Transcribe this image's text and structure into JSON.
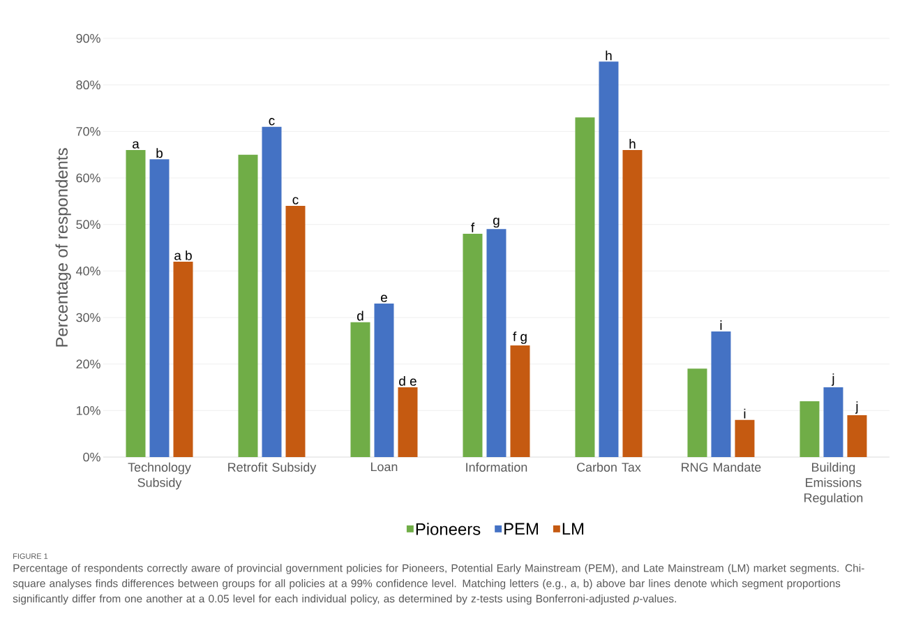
{
  "chart_data": {
    "type": "bar",
    "ylabel": "Percentage of respondents",
    "categories": [
      "Technology Subsidy",
      "Retrofit Subsidy",
      "Loan",
      "Information",
      "Carbon Tax",
      "RNG Mandate",
      "Building Emissions Regulation"
    ],
    "series": [
      {
        "name": "Pioneers",
        "color": "#70ad47",
        "values": [
          66,
          65,
          29,
          48,
          73,
          19,
          12
        ],
        "value_labels": [
          "a",
          null,
          "d",
          "f",
          null,
          null,
          null
        ]
      },
      {
        "name": "PEM",
        "color": "#4472c4",
        "values": [
          64,
          71,
          33,
          49,
          85,
          27,
          15
        ],
        "value_labels": [
          "b",
          "c",
          "e",
          "g",
          "h",
          "i",
          "j"
        ]
      },
      {
        "name": "LM",
        "color": "#c55a11",
        "values": [
          42,
          54,
          15,
          24,
          66,
          8,
          9
        ],
        "value_labels": [
          "a b",
          "c",
          "d e",
          "f g",
          "h",
          "i",
          "j"
        ]
      }
    ],
    "ylim": [
      0,
      90
    ],
    "yticks": [
      {
        "value": 0,
        "label": "0%"
      },
      {
        "value": 10,
        "label": "10%"
      },
      {
        "value": 20,
        "label": "20%"
      },
      {
        "value": 30,
        "label": "30%"
      },
      {
        "value": 40,
        "label": "40%"
      },
      {
        "value": 50,
        "label": "50%"
      },
      {
        "value": 60,
        "label": "60%"
      },
      {
        "value": 70,
        "label": "70%"
      },
      {
        "value": 80,
        "label": "80%"
      },
      {
        "value": 90,
        "label": "90%"
      }
    ],
    "grid": "y",
    "legend": "bottom",
    "annotations": [
      "FIGURE 1",
      "Percentage of respondents correctly aware of provincial government policies for Pioneers, Potential Early Mainstream (PEM), and Late Mainstream (LM) market segments. Chi-square analyses finds differences between groups for all policies at a 99% confidence level. Matching letters (e.g., a, b) above bar lines denote which segment proportions significantly differ from one another at a 0.05 level for each individual policy, as determined by z-tests using Bonferroni-adjusted *p*-values."
    ]
  }
}
